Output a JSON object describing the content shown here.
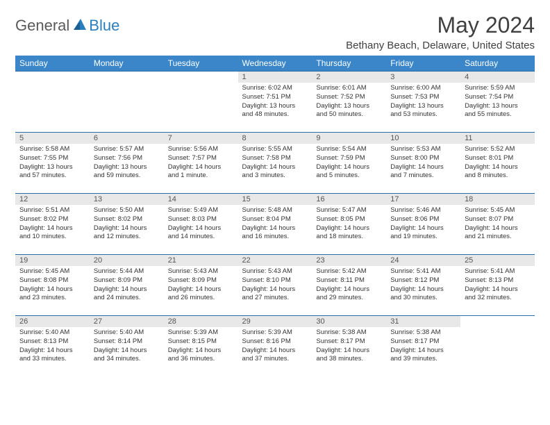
{
  "logo": {
    "general": "General",
    "blue": "Blue"
  },
  "title": "May 2024",
  "location": "Bethany Beach, Delaware, United States",
  "colors": {
    "header_bg": "#3a86c8",
    "header_text": "#ffffff",
    "daynum_bg": "#e8e8e8",
    "daynum_text": "#555555",
    "border": "#2a6ca8",
    "title_text": "#404040",
    "logo_general": "#5a5a5a",
    "logo_blue": "#2a7fbf"
  },
  "weekdays": [
    "Sunday",
    "Monday",
    "Tuesday",
    "Wednesday",
    "Thursday",
    "Friday",
    "Saturday"
  ],
  "weeks": [
    [
      null,
      null,
      null,
      {
        "n": "1",
        "sr": "Sunrise: 6:02 AM",
        "ss": "Sunset: 7:51 PM",
        "dl": "Daylight: 13 hours and 48 minutes."
      },
      {
        "n": "2",
        "sr": "Sunrise: 6:01 AM",
        "ss": "Sunset: 7:52 PM",
        "dl": "Daylight: 13 hours and 50 minutes."
      },
      {
        "n": "3",
        "sr": "Sunrise: 6:00 AM",
        "ss": "Sunset: 7:53 PM",
        "dl": "Daylight: 13 hours and 53 minutes."
      },
      {
        "n": "4",
        "sr": "Sunrise: 5:59 AM",
        "ss": "Sunset: 7:54 PM",
        "dl": "Daylight: 13 hours and 55 minutes."
      }
    ],
    [
      {
        "n": "5",
        "sr": "Sunrise: 5:58 AM",
        "ss": "Sunset: 7:55 PM",
        "dl": "Daylight: 13 hours and 57 minutes."
      },
      {
        "n": "6",
        "sr": "Sunrise: 5:57 AM",
        "ss": "Sunset: 7:56 PM",
        "dl": "Daylight: 13 hours and 59 minutes."
      },
      {
        "n": "7",
        "sr": "Sunrise: 5:56 AM",
        "ss": "Sunset: 7:57 PM",
        "dl": "Daylight: 14 hours and 1 minute."
      },
      {
        "n": "8",
        "sr": "Sunrise: 5:55 AM",
        "ss": "Sunset: 7:58 PM",
        "dl": "Daylight: 14 hours and 3 minutes."
      },
      {
        "n": "9",
        "sr": "Sunrise: 5:54 AM",
        "ss": "Sunset: 7:59 PM",
        "dl": "Daylight: 14 hours and 5 minutes."
      },
      {
        "n": "10",
        "sr": "Sunrise: 5:53 AM",
        "ss": "Sunset: 8:00 PM",
        "dl": "Daylight: 14 hours and 7 minutes."
      },
      {
        "n": "11",
        "sr": "Sunrise: 5:52 AM",
        "ss": "Sunset: 8:01 PM",
        "dl": "Daylight: 14 hours and 8 minutes."
      }
    ],
    [
      {
        "n": "12",
        "sr": "Sunrise: 5:51 AM",
        "ss": "Sunset: 8:02 PM",
        "dl": "Daylight: 14 hours and 10 minutes."
      },
      {
        "n": "13",
        "sr": "Sunrise: 5:50 AM",
        "ss": "Sunset: 8:02 PM",
        "dl": "Daylight: 14 hours and 12 minutes."
      },
      {
        "n": "14",
        "sr": "Sunrise: 5:49 AM",
        "ss": "Sunset: 8:03 PM",
        "dl": "Daylight: 14 hours and 14 minutes."
      },
      {
        "n": "15",
        "sr": "Sunrise: 5:48 AM",
        "ss": "Sunset: 8:04 PM",
        "dl": "Daylight: 14 hours and 16 minutes."
      },
      {
        "n": "16",
        "sr": "Sunrise: 5:47 AM",
        "ss": "Sunset: 8:05 PM",
        "dl": "Daylight: 14 hours and 18 minutes."
      },
      {
        "n": "17",
        "sr": "Sunrise: 5:46 AM",
        "ss": "Sunset: 8:06 PM",
        "dl": "Daylight: 14 hours and 19 minutes."
      },
      {
        "n": "18",
        "sr": "Sunrise: 5:45 AM",
        "ss": "Sunset: 8:07 PM",
        "dl": "Daylight: 14 hours and 21 minutes."
      }
    ],
    [
      {
        "n": "19",
        "sr": "Sunrise: 5:45 AM",
        "ss": "Sunset: 8:08 PM",
        "dl": "Daylight: 14 hours and 23 minutes."
      },
      {
        "n": "20",
        "sr": "Sunrise: 5:44 AM",
        "ss": "Sunset: 8:09 PM",
        "dl": "Daylight: 14 hours and 24 minutes."
      },
      {
        "n": "21",
        "sr": "Sunrise: 5:43 AM",
        "ss": "Sunset: 8:09 PM",
        "dl": "Daylight: 14 hours and 26 minutes."
      },
      {
        "n": "22",
        "sr": "Sunrise: 5:43 AM",
        "ss": "Sunset: 8:10 PM",
        "dl": "Daylight: 14 hours and 27 minutes."
      },
      {
        "n": "23",
        "sr": "Sunrise: 5:42 AM",
        "ss": "Sunset: 8:11 PM",
        "dl": "Daylight: 14 hours and 29 minutes."
      },
      {
        "n": "24",
        "sr": "Sunrise: 5:41 AM",
        "ss": "Sunset: 8:12 PM",
        "dl": "Daylight: 14 hours and 30 minutes."
      },
      {
        "n": "25",
        "sr": "Sunrise: 5:41 AM",
        "ss": "Sunset: 8:13 PM",
        "dl": "Daylight: 14 hours and 32 minutes."
      }
    ],
    [
      {
        "n": "26",
        "sr": "Sunrise: 5:40 AM",
        "ss": "Sunset: 8:13 PM",
        "dl": "Daylight: 14 hours and 33 minutes."
      },
      {
        "n": "27",
        "sr": "Sunrise: 5:40 AM",
        "ss": "Sunset: 8:14 PM",
        "dl": "Daylight: 14 hours and 34 minutes."
      },
      {
        "n": "28",
        "sr": "Sunrise: 5:39 AM",
        "ss": "Sunset: 8:15 PM",
        "dl": "Daylight: 14 hours and 36 minutes."
      },
      {
        "n": "29",
        "sr": "Sunrise: 5:39 AM",
        "ss": "Sunset: 8:16 PM",
        "dl": "Daylight: 14 hours and 37 minutes."
      },
      {
        "n": "30",
        "sr": "Sunrise: 5:38 AM",
        "ss": "Sunset: 8:17 PM",
        "dl": "Daylight: 14 hours and 38 minutes."
      },
      {
        "n": "31",
        "sr": "Sunrise: 5:38 AM",
        "ss": "Sunset: 8:17 PM",
        "dl": "Daylight: 14 hours and 39 minutes."
      },
      null
    ]
  ]
}
